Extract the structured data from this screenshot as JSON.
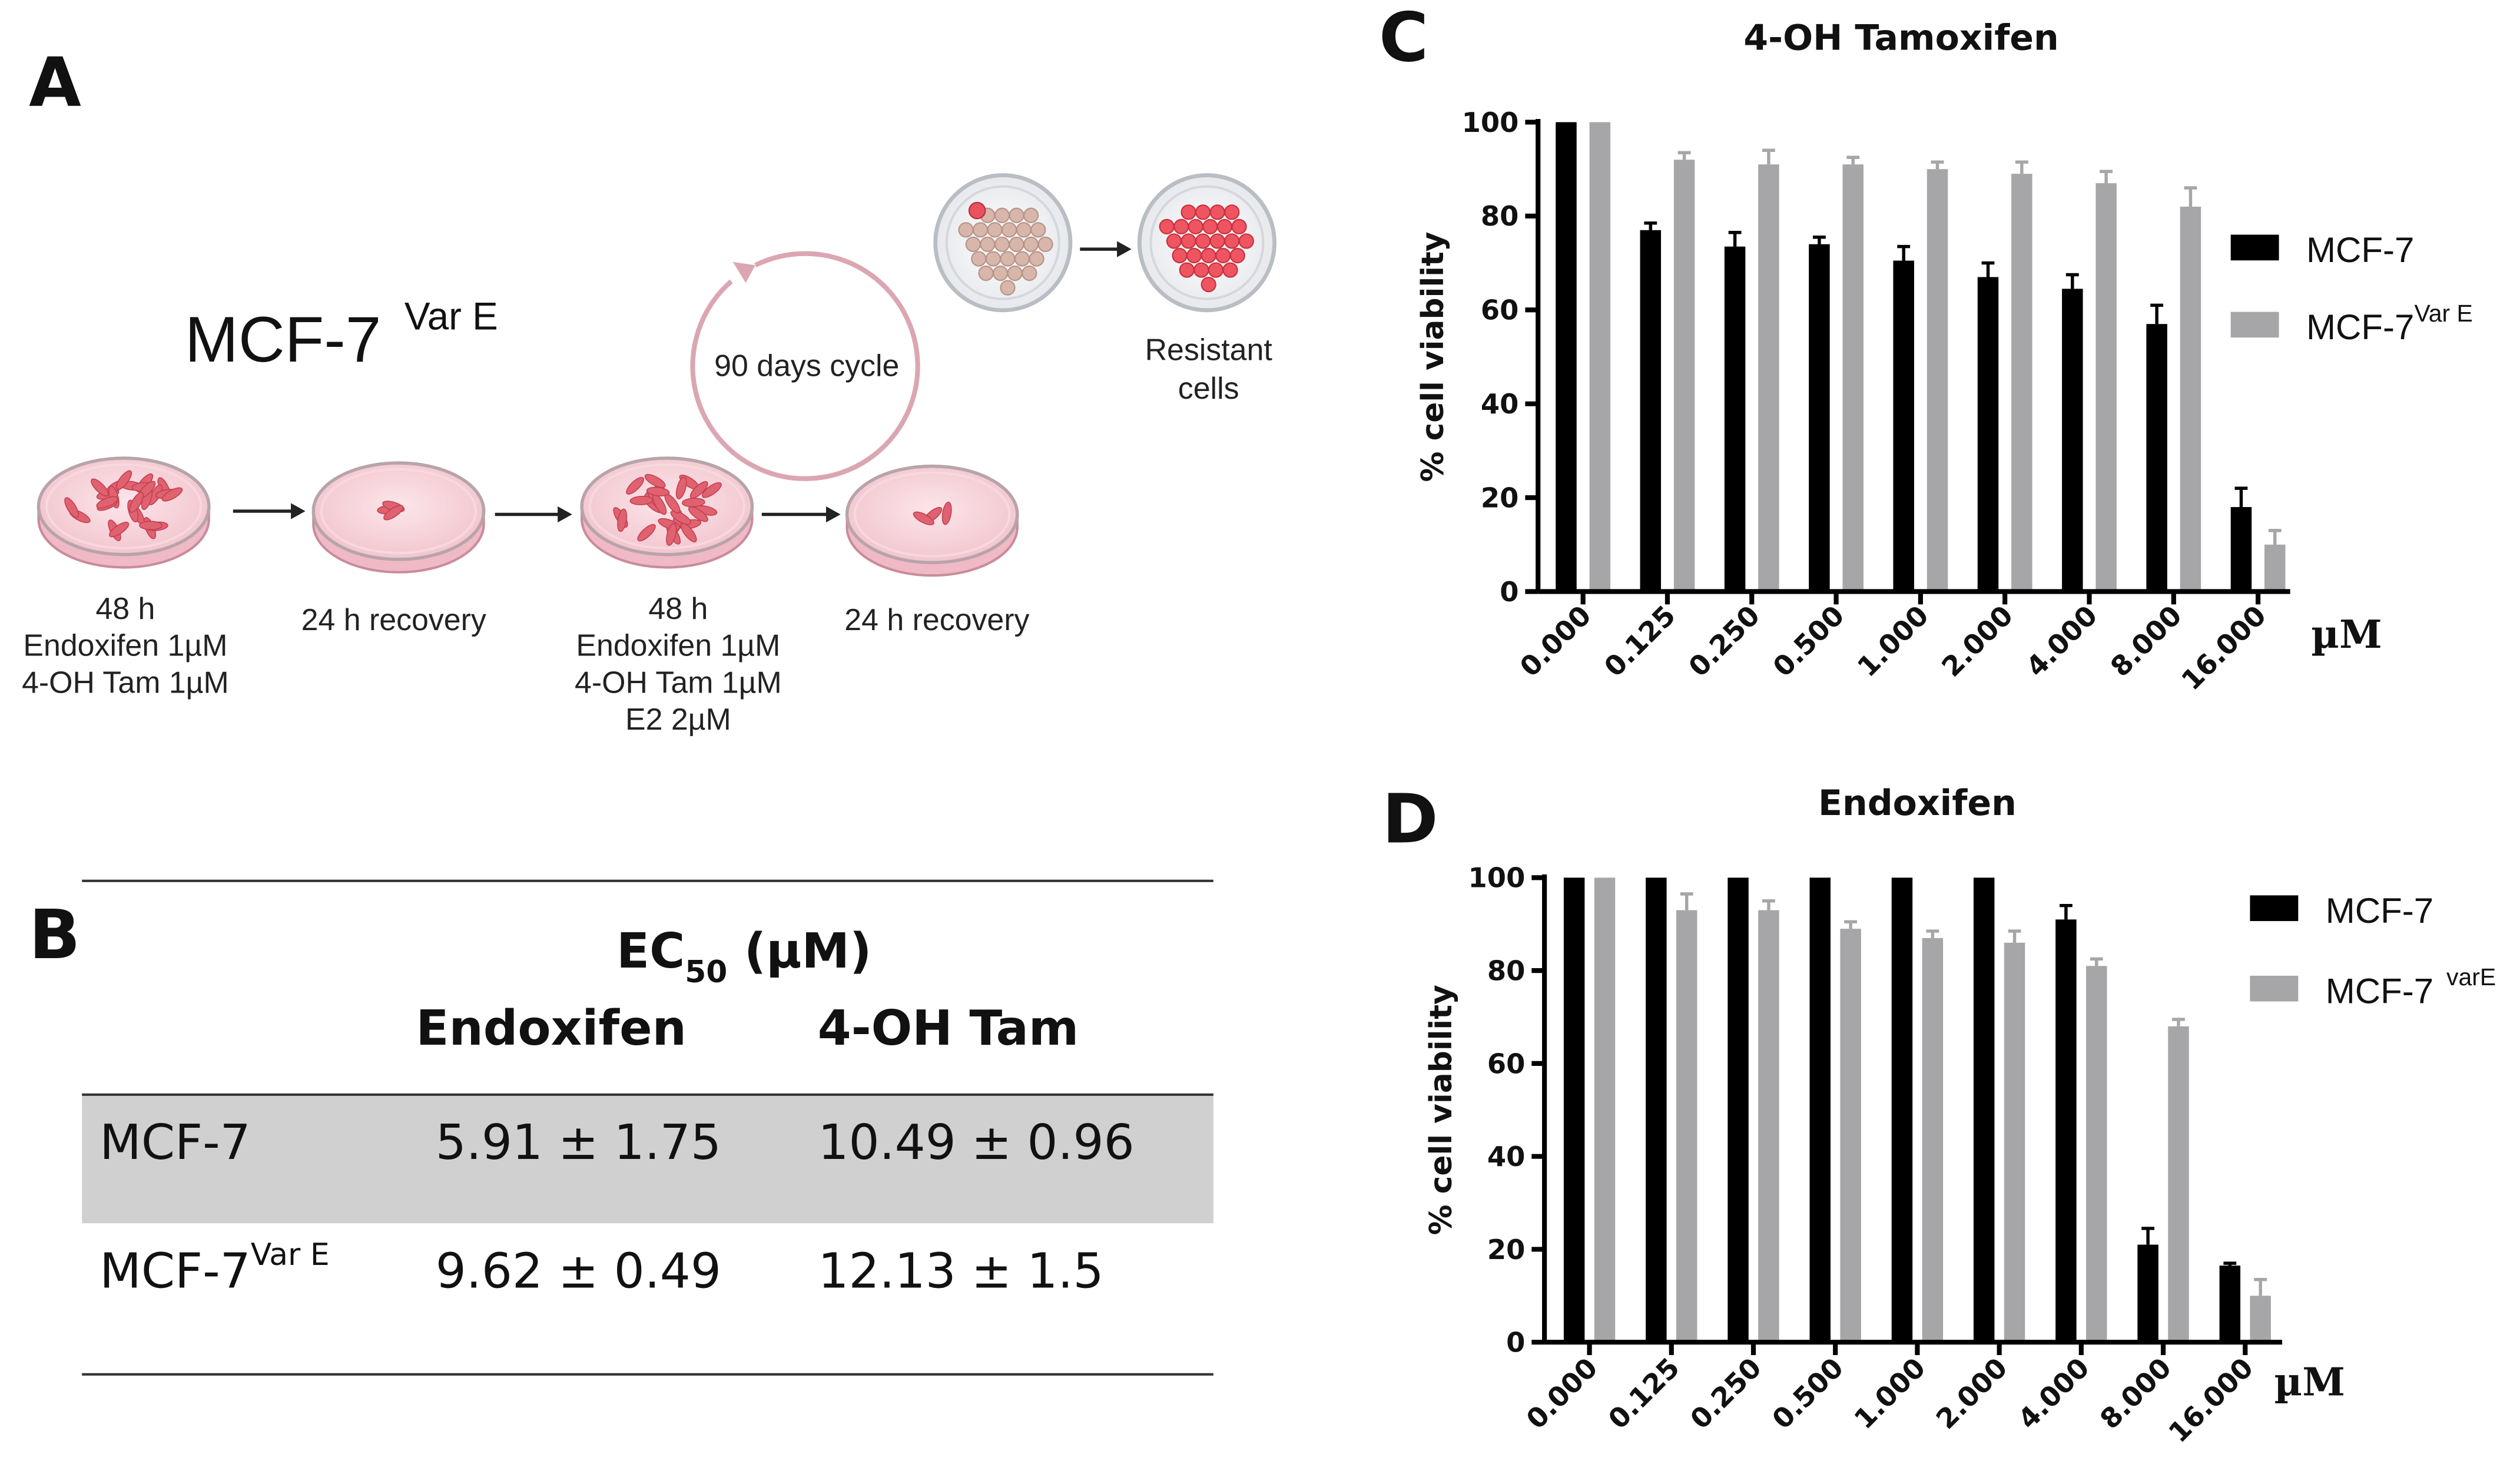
{
  "panel_a": {
    "label": "A",
    "cell_line": "MCF-7",
    "cell_line_sup": "Var E",
    "cycle_label": "90 days cycle",
    "resistant_label": [
      "Resistant",
      "cells"
    ],
    "steps": [
      {
        "lines": [
          "48 h",
          "Endoxifen 1µM",
          "4-OH Tam 1µM"
        ]
      },
      {
        "lines": [
          "24 h recovery"
        ]
      },
      {
        "lines": [
          "48 h",
          "Endoxifen 1µM",
          "4-OH Tam 1µM",
          "E2 2µM"
        ]
      },
      {
        "lines": [
          "24 h recovery"
        ]
      }
    ]
  },
  "panel_b": {
    "label": "B",
    "header_main": "EC",
    "header_sub": "50",
    "header_unit": " (µM)",
    "columns": [
      "Endoxifen",
      "4-OH Tam"
    ],
    "rows": [
      {
        "name": "MCF-7",
        "name_sup": "",
        "values": [
          "5.91 ± 1.75",
          "10.49 ± 0.96"
        ],
        "shaded": true
      },
      {
        "name": "MCF-7",
        "name_sup": "Var E",
        "values": [
          "9.62 ± 0.49",
          "12.13 ± 1.5"
        ],
        "shaded": false
      }
    ]
  },
  "chart_data": [
    {
      "panel": "C",
      "type": "bar",
      "title": "4-OH Tamoxifen",
      "xlabel": "",
      "x_unit": "µM",
      "ylabel": "% cell viability",
      "ylim": [
        0,
        100
      ],
      "yticks": [
        0,
        20,
        40,
        60,
        80,
        100
      ],
      "categories": [
        "0.000",
        "0.125",
        "0.250",
        "0.500",
        "1.000",
        "2.000",
        "4.000",
        "8.000",
        "16.000"
      ],
      "legend_position": "right",
      "series": [
        {
          "name": "MCF-7",
          "name_sup": "",
          "color": "#000000",
          "values": [
            100,
            77,
            73.5,
            74,
            70.5,
            67,
            64.5,
            57,
            18
          ],
          "errors": [
            0,
            1.5,
            3,
            1.5,
            3,
            3,
            3,
            4,
            4
          ]
        },
        {
          "name": "MCF-7",
          "name_sup": "Var  E",
          "color": "#a6a6a8",
          "values": [
            100,
            92,
            91,
            91,
            90,
            89,
            87,
            82,
            10
          ],
          "errors": [
            0,
            1.5,
            3,
            1.5,
            1.5,
            2.5,
            2.5,
            4,
            3
          ]
        }
      ]
    },
    {
      "panel": "D",
      "type": "bar",
      "title": "Endoxifen",
      "xlabel": "",
      "x_unit": "µM",
      "ylabel": "% cell viability",
      "ylim": [
        0,
        100
      ],
      "yticks": [
        0,
        20,
        40,
        60,
        80,
        100
      ],
      "categories": [
        "0.000",
        "0.125",
        "0.250",
        "0.500",
        "1.000",
        "2.000",
        "4.000",
        "8.000",
        "16.000"
      ],
      "legend_position": "right",
      "series": [
        {
          "name": "MCF-7",
          "name_sup": "",
          "color": "#000000",
          "values": [
            100,
            100,
            100,
            100,
            100,
            100,
            91,
            21,
            16.5
          ],
          "errors": [
            0,
            0,
            0,
            0,
            0,
            0,
            3,
            3.5,
            0.5
          ]
        },
        {
          "name": "MCF-7",
          "name_sup": "varE",
          "color": "#a6a6a8",
          "values": [
            100,
            93,
            93,
            89,
            87,
            86,
            81,
            68,
            10
          ],
          "errors": [
            0,
            3.5,
            2,
            1.5,
            1.5,
            2.5,
            1.5,
            1.5,
            3.5
          ]
        }
      ]
    }
  ]
}
